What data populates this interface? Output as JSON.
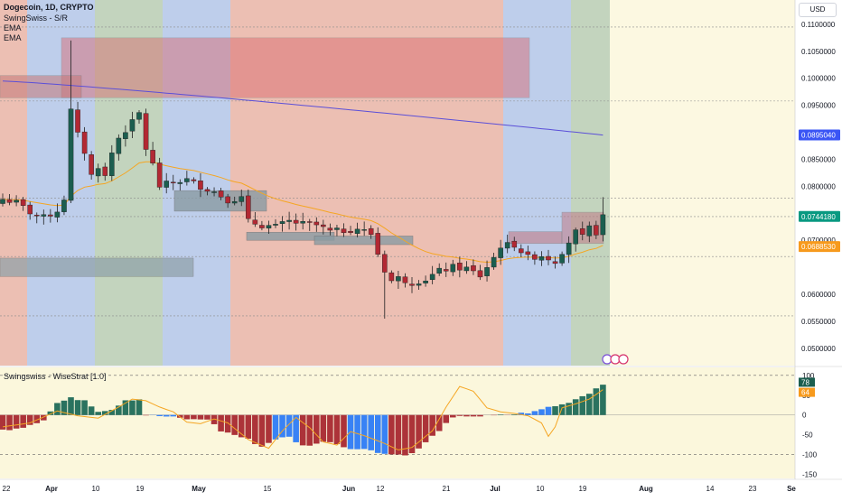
{
  "chart_data": {
    "type": "candlestick",
    "symbol_line": {
      "symbol": "Dogecoin, 1D, CRYPTO"
    },
    "indicator_labels": [
      "SwingSwiss - S/R",
      "EMA",
      "EMA"
    ],
    "currency_button": "USD",
    "x_axis": {
      "labels": [
        "22",
        "Apr",
        "10",
        "19",
        "May",
        "15",
        "Jun",
        "12",
        "21",
        "Jul",
        "10",
        "19",
        "Aug",
        "14",
        "23",
        "Se"
      ]
    },
    "price_axis": {
      "ylim": [
        0.0468,
        0.1145
      ],
      "ticks": [
        "0.1100000",
        "0.1050000",
        "0.1000000",
        "0.0950000",
        "0.0850000",
        "0.0800000",
        "0.0700000",
        "0.0600000",
        "0.0550000",
        "0.0500000"
      ],
      "tick_values": [
        0.11,
        0.105,
        0.1,
        0.095,
        0.085,
        0.08,
        0.07,
        0.06,
        0.055,
        0.05
      ],
      "badges": [
        {
          "label": "0.0895040",
          "value": 0.089504,
          "color": "#3a55f5"
        },
        {
          "label": "0.0744180",
          "value": 0.074418,
          "color": "#089981"
        },
        {
          "label": "0.0688530",
          "value": 0.068853,
          "color": "#f79a1d"
        }
      ]
    },
    "oscillator": {
      "title": "Swingswiss - WiseStrat [1.0]",
      "ylim": [
        -160,
        120
      ],
      "ticks": [
        "100",
        "50",
        "0",
        "-50",
        "-100",
        "-150"
      ],
      "tick_values": [
        100,
        50,
        0,
        -50,
        -100,
        -150
      ],
      "badges": [
        {
          "label": "78",
          "value": 78,
          "color": "#1b5e4f"
        },
        {
          "label": "64",
          "value": 64,
          "color": "#f79a1d"
        }
      ]
    },
    "colors": {
      "up": "#1b5e4f",
      "down": "#b22833",
      "osc_up": "#1f6a57",
      "osc_down": "#a8282f",
      "osc_blue": "#2d7bf5",
      "ema_fast": "#f5a623",
      "ema_slow": "#5b4fd8",
      "zone_red": "#e9b4a6",
      "zone_blue": "#b3c6e8",
      "zone_green": "#b8cdb3",
      "zone_future": "#fbf7dc"
    }
  }
}
